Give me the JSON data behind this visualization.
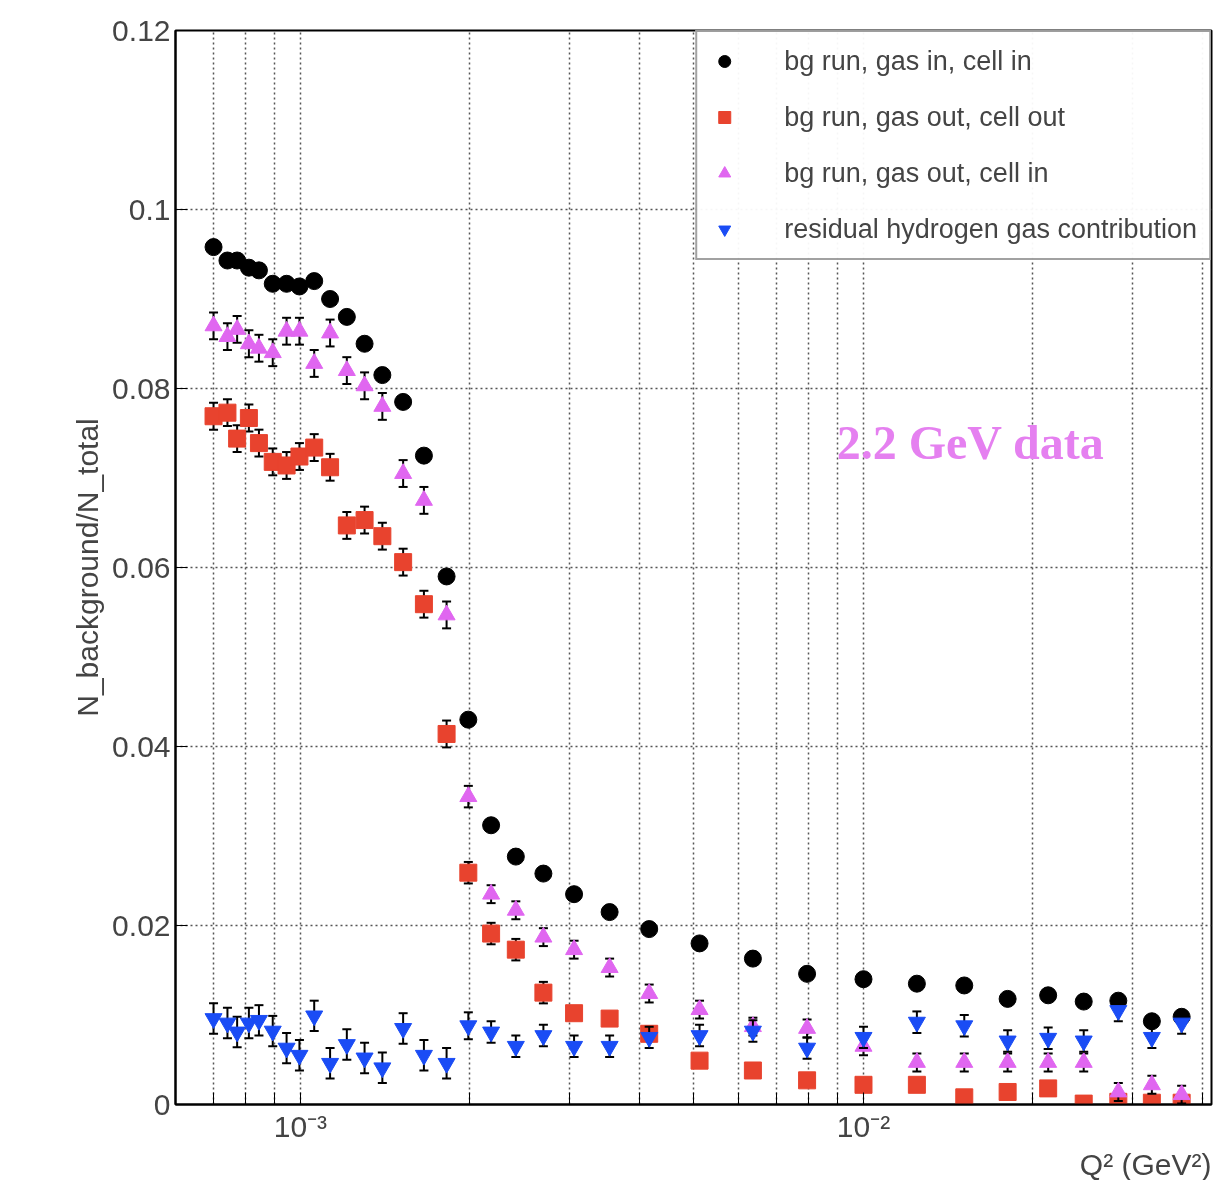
{
  "chart_data": {
    "type": "scatter",
    "xlabel": "Q² (GeV²)",
    "ylabel": "N_background/N_total",
    "log": "x",
    "xlim": [
      0.0006,
      0.0415
    ],
    "ylim": [
      0,
      0.12
    ],
    "xticks": [
      {
        "value": 0.0007,
        "label": null
      },
      {
        "value": 0.0008,
        "label": null
      },
      {
        "value": 0.0009,
        "label": null
      },
      {
        "value": 0.001,
        "label": "10⁻³"
      },
      {
        "value": 0.002,
        "label": null
      },
      {
        "value": 0.003,
        "label": null
      },
      {
        "value": 0.004,
        "label": null
      },
      {
        "value": 0.005,
        "label": null
      },
      {
        "value": 0.006,
        "label": null
      },
      {
        "value": 0.007,
        "label": null
      },
      {
        "value": 0.008,
        "label": null
      },
      {
        "value": 0.009,
        "label": null
      },
      {
        "value": 0.01,
        "label": "10⁻²"
      },
      {
        "value": 0.02,
        "label": null
      },
      {
        "value": 0.03,
        "label": null
      },
      {
        "value": 0.04,
        "label": null
      }
    ],
    "yticks": [
      0,
      0.02,
      0.04,
      0.06,
      0.08,
      0.1,
      0.12
    ],
    "grid": true,
    "legend": "top right",
    "annotations": [
      "2.2 GeV data"
    ],
    "x": [
      0.000701,
      0.000742,
      0.000772,
      0.00081,
      0.000844,
      0.000893,
      0.000945,
      0.000996,
      0.001058,
      0.001129,
      0.001209,
      0.0013,
      0.001398,
      0.001522,
      0.001657,
      0.001818,
      0.001987,
      0.002181,
      0.002413,
      0.002701,
      0.003062,
      0.003541,
      0.004163,
      0.005115,
      0.006362,
      0.00794,
      0.01,
      0.01244,
      0.0151,
      0.01803,
      0.02128,
      0.02461,
      0.02835,
      0.03252,
      0.03673
    ],
    "series": [
      {
        "name": "bg run, gas in, cell in",
        "color": "#000000",
        "marker": "circle",
        "values": [
          0.0958,
          0.0943,
          0.0943,
          0.0935,
          0.0932,
          0.0917,
          0.0917,
          0.0914,
          0.092,
          0.09,
          0.088,
          0.085,
          0.0815,
          0.0785,
          0.0725,
          0.059,
          0.043,
          0.0312,
          0.0277,
          0.0258,
          0.0235,
          0.0215,
          0.0196,
          0.018,
          0.0163,
          0.0146,
          0.014,
          0.0135,
          0.0133,
          0.0118,
          0.0122,
          0.0115,
          0.0116,
          0.0093,
          0.0098
        ]
      },
      {
        "name": "bg run, gas out, cell out",
        "color": "#e8432e",
        "marker": "square",
        "values": [
          0.0769,
          0.0773,
          0.0744,
          0.0767,
          0.0739,
          0.0718,
          0.0714,
          0.0724,
          0.0734,
          0.0712,
          0.0647,
          0.0653,
          0.0635,
          0.0606,
          0.0559,
          0.0414,
          0.0259,
          0.0191,
          0.0173,
          0.0125,
          0.0102,
          0.0096,
          0.0079,
          0.0049,
          0.0038,
          0.0027,
          0.0022,
          0.0022,
          0.0008,
          0.0014,
          0.0018,
          0.0001,
          0.0003,
          0.0002,
          0.0002
        ],
        "errors": [
          0.0015,
          0.0015,
          0.0015,
          0.0015,
          0.0015,
          0.0015,
          0.0015,
          0.0015,
          0.0015,
          0.0015,
          0.0015,
          0.0015,
          0.0015,
          0.0015,
          0.0015,
          0.0015,
          0.0012,
          0.0012,
          0.0012,
          0.0012,
          null,
          null,
          null,
          null,
          null,
          null,
          null,
          null,
          null,
          null,
          null,
          null,
          null,
          null,
          null
        ]
      },
      {
        "name": "bg run, gas out, cell in",
        "color": "#e066f0",
        "marker": "triangle",
        "values": [
          0.087,
          0.0858,
          0.0866,
          0.085,
          0.0845,
          0.084,
          0.0864,
          0.0864,
          0.0828,
          0.0862,
          0.082,
          0.0803,
          0.078,
          0.0705,
          0.0675,
          0.0547,
          0.0344,
          0.0235,
          0.0217,
          0.0187,
          0.0173,
          0.0153,
          0.0124,
          0.0106,
          0.0087,
          0.0085,
          0.0065,
          0.0047,
          0.0047,
          0.0047,
          0.0047,
          0.0047,
          0.0014,
          0.0022,
          0.0011
        ],
        "errors": [
          0.0015,
          0.0015,
          0.0015,
          0.0015,
          0.0015,
          0.0015,
          0.0015,
          0.0015,
          0.0015,
          0.0015,
          0.0015,
          0.0015,
          0.0015,
          0.0015,
          0.0015,
          0.0015,
          0.0012,
          0.001,
          0.001,
          0.001,
          0.001,
          0.001,
          0.001,
          0.001,
          0.001,
          0.001,
          0.001,
          0.001,
          0.001,
          0.001,
          0.001,
          0.001,
          0.001,
          0.001,
          0.001
        ]
      },
      {
        "name": "residual hydrogen gas contribution",
        "color": "#1a4cf5",
        "values": [
          0.0096,
          0.0091,
          0.0081,
          0.0091,
          0.0094,
          0.0082,
          0.0063,
          0.0055,
          0.0099,
          0.0046,
          0.0067,
          0.0052,
          0.0041,
          0.0085,
          0.0055,
          0.0046,
          0.0088,
          0.0081,
          0.0065,
          0.0077,
          0.0065,
          0.0065,
          0.0075,
          0.0077,
          0.0082,
          0.0063,
          0.0075,
          0.0092,
          0.0088,
          0.0071,
          0.0074,
          0.0071,
          0.0105,
          0.0075,
          0.0091
        ],
        "errors": [
          0.0017,
          0.0017,
          0.0017,
          0.0017,
          0.0017,
          0.0017,
          0.0017,
          0.0017,
          0.0017,
          0.0017,
          0.0017,
          0.0017,
          0.0017,
          0.0017,
          0.0017,
          0.0017,
          0.0015,
          0.0012,
          0.0012,
          0.0012,
          0.0012,
          0.0012,
          0.0012,
          0.0012,
          0.0012,
          0.0012,
          0.0012,
          0.0012,
          0.0012,
          0.0012,
          0.0012,
          0.0012,
          0.0012,
          0.0012,
          0.0012
        ]
      }
    ]
  }
}
